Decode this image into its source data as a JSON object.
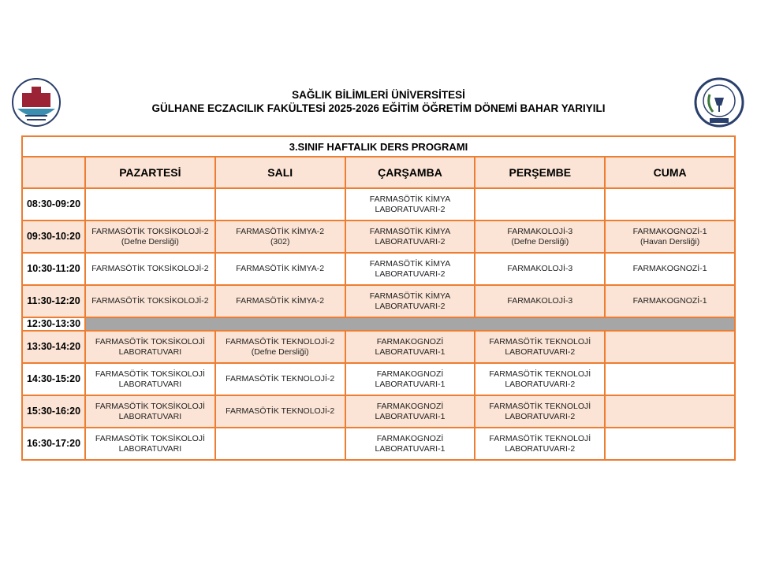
{
  "header": {
    "university": "SAĞLIK BİLİMLERİ ÜNİVERSİTESİ",
    "faculty_term": "GÜLHANE ECZACILIK FAKÜLTESİ 2025-2026 EĞİTİM ÖĞRETİM DÖNEMİ BAHAR YARIYILI",
    "logo_left_text": "SAĞLIK BİLİMLERİ ÜNİVERSİTESİ 1903",
    "logo_right_text": "SAĞLIK BİLİMLERİ ÜNİVERSİTESİ GÜLHANE ECZACILIK FAKÜLTESİ 1903"
  },
  "schedule": {
    "title": "3.SINIF HAFTALIK DERS PROGRAMI",
    "days": [
      "PAZARTESİ",
      "SALI",
      "ÇARŞAMBA",
      "PERŞEMBE",
      "CUMA"
    ],
    "rows": [
      {
        "time": "08:30-09:20",
        "cells": [
          [
            "",
            ""
          ],
          [
            "",
            ""
          ],
          [
            "FARMASÖTİK KİMYA",
            "LABORATUVARI-2"
          ],
          [
            "",
            ""
          ],
          [
            "",
            ""
          ]
        ]
      },
      {
        "time": "09:30-10:20",
        "cells": [
          [
            "FARMASÖTİK TOKSİKOLOJİ-2",
            "(Defne Dersliği)"
          ],
          [
            "FARMASÖTİK KİMYA-2",
            "(302)"
          ],
          [
            "FARMASÖTİK KİMYA",
            "LABORATUVARI-2"
          ],
          [
            "FARMAKOLOJİ-3",
            "(Defne Dersliği)"
          ],
          [
            "FARMAKOGNOZİ-1",
            "(Havan Dersliği)"
          ]
        ]
      },
      {
        "time": "10:30-11:20",
        "cells": [
          [
            "FARMASÖTİK TOKSİKOLOJİ-2",
            ""
          ],
          [
            "FARMASÖTİK KİMYA-2",
            ""
          ],
          [
            "FARMASÖTİK KİMYA",
            "LABORATUVARI-2"
          ],
          [
            "FARMAKOLOJİ-3",
            ""
          ],
          [
            "FARMAKOGNOZİ-1",
            ""
          ]
        ]
      },
      {
        "time": "11:30-12:20",
        "cells": [
          [
            "FARMASÖTİK TOKSİKOLOJİ-2",
            ""
          ],
          [
            "FARMASÖTİK KİMYA-2",
            ""
          ],
          [
            "FARMASÖTİK KİMYA",
            "LABORATUVARI-2"
          ],
          [
            "FARMAKOLOJİ-3",
            ""
          ],
          [
            "FARMAKOGNOZİ-1",
            ""
          ]
        ]
      },
      {
        "time": "13:30-14:20",
        "cells": [
          [
            "FARMASÖTİK TOKSİKOLOJİ",
            "LABORATUVARI"
          ],
          [
            "FARMASÖTİK TEKNOLOJİ-2",
            "(Defne Dersliği)"
          ],
          [
            "FARMAKOGNOZİ",
            "LABORATUVARI-1"
          ],
          [
            "FARMASÖTİK TEKNOLOJİ",
            "LABORATUVARI-2"
          ],
          [
            "",
            ""
          ]
        ]
      },
      {
        "time": "14:30-15:20",
        "cells": [
          [
            "FARMASÖTİK TOKSİKOLOJİ",
            "LABORATUVARI"
          ],
          [
            "FARMASÖTİK TEKNOLOJİ-2",
            ""
          ],
          [
            "FARMAKOGNOZİ",
            "LABORATUVARI-1"
          ],
          [
            "FARMASÖTİK TEKNOLOJİ",
            "LABORATUVARI-2"
          ],
          [
            "",
            ""
          ]
        ]
      },
      {
        "time": "15:30-16:20",
        "cells": [
          [
            "FARMASÖTİK TOKSİKOLOJİ",
            "LABORATUVARI"
          ],
          [
            "FARMASÖTİK TEKNOLOJİ-2",
            ""
          ],
          [
            "FARMAKOGNOZİ",
            "LABORATUVARI-1"
          ],
          [
            "FARMASÖTİK TEKNOLOJİ",
            "LABORATUVARI-2"
          ],
          [
            "",
            ""
          ]
        ]
      },
      {
        "time": "16:30-17:20",
        "cells": [
          [
            "FARMASÖTİK TOKSİKOLOJİ",
            "LABORATUVARI"
          ],
          [
            "",
            ""
          ],
          [
            "FARMAKOGNOZİ",
            "LABORATUVARI-1"
          ],
          [
            "FARMASÖTİK TEKNOLOJİ",
            "LABORATUVARI-2"
          ],
          [
            "",
            ""
          ]
        ]
      }
    ],
    "lunch_time": "12:30-13:30"
  },
  "colors": {
    "border": "#ED7D31",
    "fill": "#FBE4D5",
    "lunch": "#A6A6A6"
  }
}
